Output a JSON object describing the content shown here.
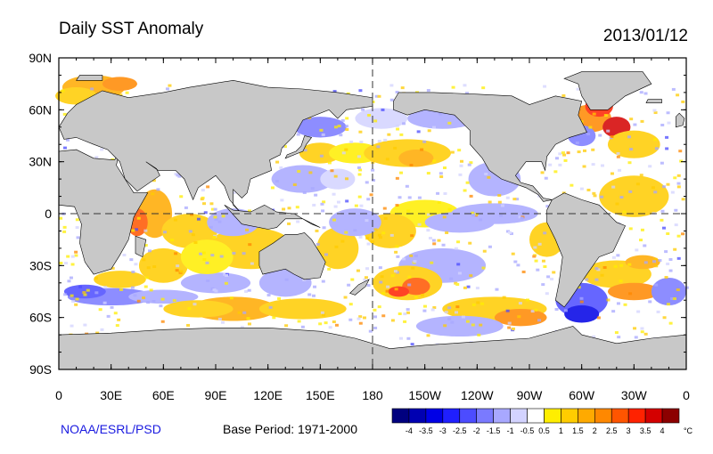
{
  "title": "Daily SST Anomaly",
  "date": "2013/01/12",
  "credit": "NOAA/ESRL/PSD",
  "base_period": "Base Period: 1971-2000",
  "chart_data": {
    "type": "heatmap",
    "title": "Daily SST Anomaly",
    "x_tick_labels": [
      "0",
      "30E",
      "60E",
      "90E",
      "120E",
      "150E",
      "180",
      "150W",
      "120W",
      "90W",
      "60W",
      "30W",
      "0"
    ],
    "y_tick_labels": [
      "90N",
      "60N",
      "30N",
      "0",
      "30S",
      "60S",
      "90S"
    ],
    "lon_range": [
      0,
      360
    ],
    "lat_range": [
      -90,
      90
    ],
    "grid_lines": "dashed equator and 180 meridian",
    "colorbar": {
      "unit": "°C",
      "labels": [
        "-4",
        "-3.5",
        "-3",
        "-2.5",
        "-2",
        "-1.5",
        "-1",
        "-0.5",
        "0.5",
        "1",
        "1.5",
        "2",
        "2.5",
        "3",
        "3.5",
        "4"
      ],
      "colors": [
        "#00007f",
        "#0000b2",
        "#0000e6",
        "#1f1fff",
        "#4c4cff",
        "#7a7aff",
        "#a8a8ff",
        "#d3d3ff",
        "#ffffff",
        "#ffee00",
        "#ffcc00",
        "#ffaa00",
        "#ff8800",
        "#ff5500",
        "#ff2200",
        "#d40000",
        "#8c0000"
      ]
    }
  },
  "colors": {
    "land": "#c8c8c8",
    "ocean_neutral": "#ffffff",
    "credit_text": "#1a1ae0"
  }
}
